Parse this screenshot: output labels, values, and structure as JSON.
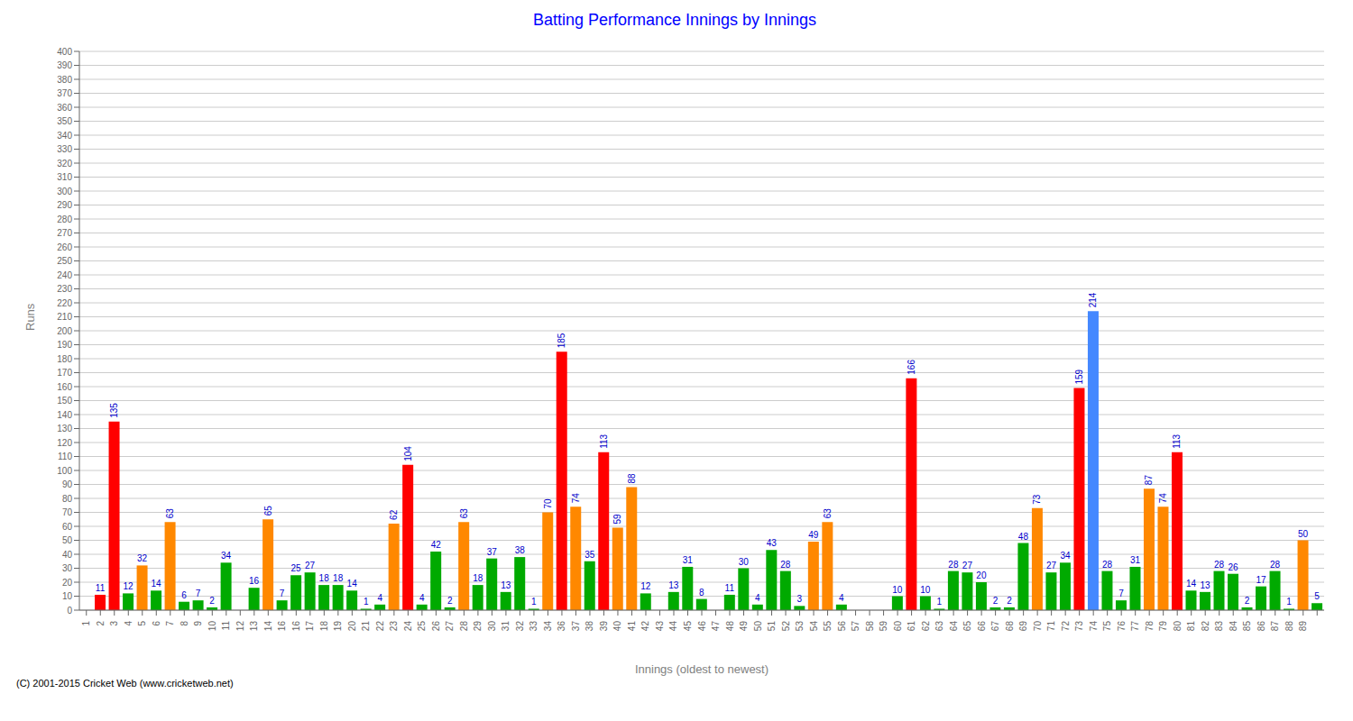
{
  "chart_data": {
    "type": "bar",
    "title": "Batting Performance Innings by Innings",
    "xlabel": "Innings (oldest to newest)",
    "ylabel": "Runs",
    "categories": [
      "1",
      "2",
      "3",
      "4",
      "5",
      "6",
      "7",
      "8",
      "9",
      "10",
      "11",
      "12",
      "13",
      "14",
      "16",
      "16",
      "17",
      "18",
      "19",
      "20",
      "21",
      "22",
      "23",
      "24",
      "25",
      "26",
      "27",
      "28",
      "29",
      "30",
      "31",
      "32",
      "33",
      "34",
      "36",
      "37",
      "38",
      "39",
      "40",
      "41",
      "42",
      "43",
      "44",
      "45",
      "46",
      "47",
      "48",
      "49",
      "50",
      "51",
      "52",
      "53",
      "54",
      "55",
      "56",
      "57",
      "58",
      "59",
      "60",
      "61",
      "62",
      "63",
      "64",
      "65",
      "66",
      "67",
      "68",
      "69",
      "70",
      "71",
      "72",
      "73",
      "74",
      "75",
      "76",
      "77",
      "78",
      "79",
      "80",
      "81",
      "82",
      "83",
      "84",
      "85",
      "86",
      "87",
      "88",
      "89",
      null
    ],
    "values": [
      0,
      11,
      135,
      12,
      32,
      14,
      63,
      6,
      7,
      2,
      34,
      0,
      16,
      65,
      7,
      25,
      27,
      18,
      18,
      14,
      1,
      4,
      62,
      104,
      4,
      42,
      2,
      63,
      18,
      37,
      13,
      38,
      1,
      70,
      185,
      74,
      35,
      113,
      59,
      88,
      12,
      0,
      13,
      31,
      8,
      0,
      11,
      30,
      4,
      43,
      28,
      3,
      49,
      63,
      4,
      0,
      0,
      0,
      10,
      166,
      10,
      1,
      28,
      27,
      20,
      2,
      2,
      48,
      73,
      27,
      34,
      159,
      214,
      28,
      7,
      31,
      87,
      74,
      113,
      14,
      13,
      28,
      26,
      2,
      17,
      28,
      1,
      50,
      5
    ],
    "colors": [
      "#00aa00",
      "#ff0000",
      "#ff0000",
      "#00aa00",
      "#ff8800",
      "#00aa00",
      "#ff8800",
      "#00aa00",
      "#00aa00",
      "#00aa00",
      "#00aa00",
      "#00aa00",
      "#00aa00",
      "#ff8800",
      "#00aa00",
      "#00aa00",
      "#00aa00",
      "#00aa00",
      "#00aa00",
      "#00aa00",
      "#00aa00",
      "#00aa00",
      "#ff8800",
      "#ff0000",
      "#00aa00",
      "#00aa00",
      "#00aa00",
      "#ff8800",
      "#00aa00",
      "#00aa00",
      "#00aa00",
      "#00aa00",
      "#00aa00",
      "#ff8800",
      "#ff0000",
      "#ff8800",
      "#00aa00",
      "#ff0000",
      "#ff8800",
      "#ff8800",
      "#00aa00",
      "#00aa00",
      "#00aa00",
      "#00aa00",
      "#00aa00",
      "#00aa00",
      "#00aa00",
      "#00aa00",
      "#00aa00",
      "#00aa00",
      "#00aa00",
      "#00aa00",
      "#ff8800",
      "#ff8800",
      "#00aa00",
      "#00aa00",
      "#00aa00",
      "#00aa00",
      "#00aa00",
      "#ff0000",
      "#00aa00",
      "#00aa00",
      "#00aa00",
      "#00aa00",
      "#00aa00",
      "#00aa00",
      "#00aa00",
      "#00aa00",
      "#ff8800",
      "#00aa00",
      "#00aa00",
      "#ff0000",
      "#4488ff",
      "#00aa00",
      "#00aa00",
      "#00aa00",
      "#ff8800",
      "#ff8800",
      "#ff0000",
      "#00aa00",
      "#00aa00",
      "#00aa00",
      "#00aa00",
      "#00aa00",
      "#00aa00",
      "#00aa00",
      "#00aa00",
      "#ff8800",
      "#00aa00"
    ],
    "ylim": [
      0,
      400
    ],
    "yticks": [
      0,
      10,
      20,
      30,
      40,
      50,
      60,
      70,
      80,
      90,
      100,
      110,
      120,
      130,
      140,
      150,
      160,
      170,
      180,
      190,
      200,
      210,
      220,
      230,
      240,
      250,
      260,
      270,
      280,
      290,
      300,
      310,
      320,
      330,
      340,
      350,
      360,
      370,
      380,
      390,
      400
    ],
    "grid": true,
    "data_labels": true,
    "annotations": [
      "(C) 2001-2015 Cricket Web (www.cricketweb.net)"
    ]
  }
}
